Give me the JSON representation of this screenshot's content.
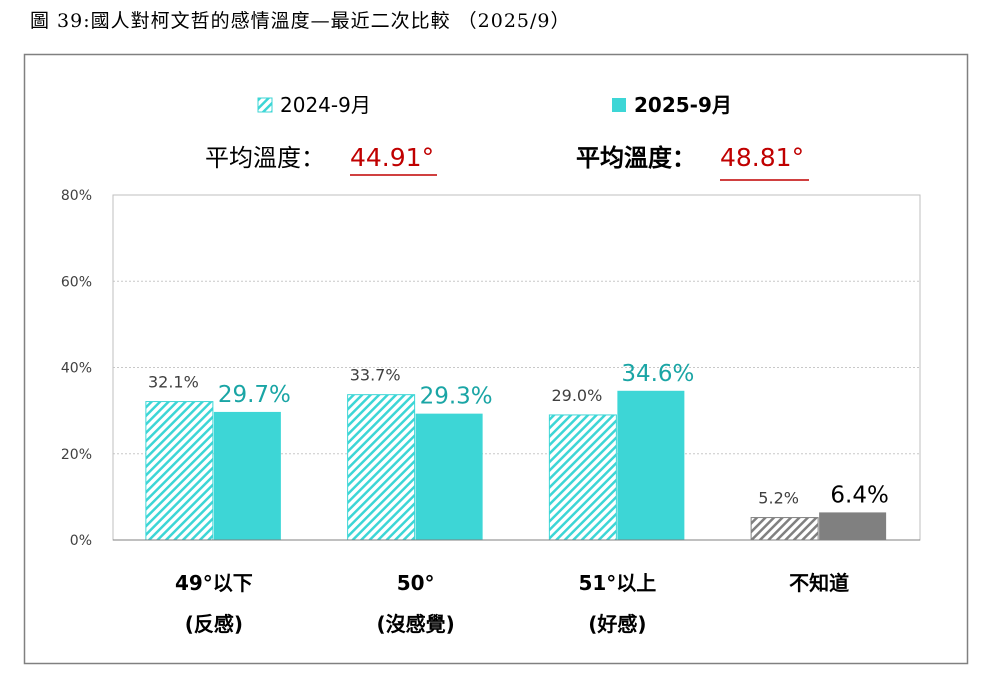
{
  "title": "圖 39:國人對柯文哲的感情溫度—最近二次比較 （2025/9）",
  "avg_label": "平均溫度：",
  "colors": {
    "new": "#3dd6d6",
    "new_label": "#1aa5a5",
    "dk": "#808080",
    "avg": "#c00000"
  },
  "chart_data": {
    "type": "bar",
    "categories": [
      [
        "49°以下",
        "(反感)"
      ],
      [
        "50°",
        "(沒感覺)"
      ],
      [
        "51°以上",
        "(好感)"
      ],
      [
        "不知道"
      ]
    ],
    "series": [
      {
        "name": "2024-9月",
        "values": [
          32.1,
          33.7,
          29.0,
          5.2
        ],
        "labels": [
          "32.1%",
          "33.7%",
          "29.0%",
          "5.2%"
        ],
        "avg": "44.91°",
        "style": "hatched"
      },
      {
        "name": "2025-9月",
        "values": [
          29.7,
          29.3,
          34.6,
          6.4
        ],
        "labels": [
          "29.7%",
          "29.3%",
          "34.6%",
          "6.4%"
        ],
        "avg": "48.81°",
        "style": "solid"
      }
    ],
    "ylim": [
      0,
      80
    ],
    "yticks": [
      "0%",
      "20%",
      "40%",
      "60%",
      "80%"
    ],
    "grid": true,
    "legend": "top"
  }
}
